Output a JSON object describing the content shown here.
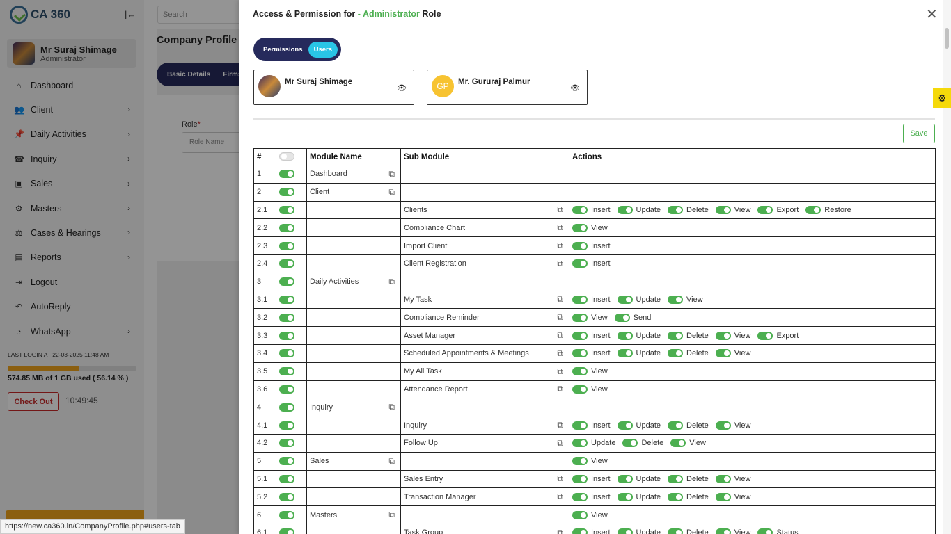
{
  "app": {
    "logo_text": "CA 360"
  },
  "sidebar": {
    "user": {
      "name": "Mr Suraj Shimage",
      "role": "Administrator"
    },
    "items": [
      {
        "label": "Dashboard",
        "icon": "⌂",
        "chev": false
      },
      {
        "label": "Client",
        "icon": "👥",
        "chev": true
      },
      {
        "label": "Daily Activities",
        "icon": "📌",
        "chev": true
      },
      {
        "label": "Inquiry",
        "icon": "☎",
        "chev": true
      },
      {
        "label": "Sales",
        "icon": "▣",
        "chev": true
      },
      {
        "label": "Masters",
        "icon": "⚙",
        "chev": true
      },
      {
        "label": "Cases & Hearings",
        "icon": "⚖",
        "chev": true
      },
      {
        "label": "Reports",
        "icon": "▤",
        "chev": true
      },
      {
        "label": "Logout",
        "icon": "⇥",
        "chev": false
      },
      {
        "label": "AutoReply",
        "icon": "↶",
        "chev": false
      },
      {
        "label": "WhatsApp",
        "icon": "◔",
        "chev": true
      }
    ],
    "last_login": "LAST LOGIN AT 22-03-2025 11:48 AM",
    "storage_text": "574.85 MB of 1 GB used ( 56.14 % )",
    "storage_fraction": 0.5614,
    "checkout_label": "Check Out",
    "clock": "10:49:45"
  },
  "main": {
    "search_placeholder": "Search",
    "page_title": "Company Profile",
    "tabs": [
      "Basic Details",
      "Firms"
    ],
    "role_label": "Role",
    "role_required": "*",
    "role_placeholder": "Role Name"
  },
  "status_url": "https://new.ca360.in/CompanyProfile.php#users-tab",
  "drawer": {
    "title_prefix": "Access & Permission for",
    "title_role": "- Administrator",
    "title_suffix": "Role",
    "toggle": {
      "permissions": "Permissions",
      "users": "Users"
    },
    "users": [
      {
        "name": "Mr Suraj Shimage",
        "initials": ""
      },
      {
        "name": "Mr. Gururaj Palmur",
        "initials": "GP"
      }
    ],
    "save_label": "Save",
    "table": {
      "headers": [
        "#",
        "",
        "Module Name",
        "Sub Module",
        "Actions"
      ],
      "rows": [
        {
          "num": "1",
          "module": "Dashboard",
          "sub": "",
          "actions": []
        },
        {
          "num": "2",
          "module": "Client",
          "sub": "",
          "actions": []
        },
        {
          "num": "2.1",
          "module": "",
          "sub": "Clients",
          "actions": [
            "Insert",
            "Update",
            "Delete",
            "View",
            "Export",
            "Restore"
          ]
        },
        {
          "num": "2.2",
          "module": "",
          "sub": "Compliance Chart",
          "actions": [
            "View"
          ]
        },
        {
          "num": "2.3",
          "module": "",
          "sub": "Import Client",
          "actions": [
            "Insert"
          ]
        },
        {
          "num": "2.4",
          "module": "",
          "sub": "Client Registration",
          "actions": [
            "Insert"
          ]
        },
        {
          "num": "3",
          "module": "Daily Activities",
          "sub": "",
          "actions": []
        },
        {
          "num": "3.1",
          "module": "",
          "sub": "My Task",
          "actions": [
            "Insert",
            "Update",
            "View"
          ]
        },
        {
          "num": "3.2",
          "module": "",
          "sub": "Compliance Reminder",
          "actions": [
            "View",
            "Send"
          ]
        },
        {
          "num": "3.3",
          "module": "",
          "sub": "Asset Manager",
          "actions": [
            "Insert",
            "Update",
            "Delete",
            "View",
            "Export"
          ]
        },
        {
          "num": "3.4",
          "module": "",
          "sub": "Scheduled Appointments & Meetings",
          "actions": [
            "Insert",
            "Update",
            "Delete",
            "View"
          ]
        },
        {
          "num": "3.5",
          "module": "",
          "sub": "My All Task",
          "actions": [
            "View"
          ]
        },
        {
          "num": "3.6",
          "module": "",
          "sub": "Attendance Report",
          "actions": [
            "View"
          ]
        },
        {
          "num": "4",
          "module": "Inquiry",
          "sub": "",
          "actions": []
        },
        {
          "num": "4.1",
          "module": "",
          "sub": "Inquiry",
          "actions": [
            "Insert",
            "Update",
            "Delete",
            "View"
          ]
        },
        {
          "num": "4.2",
          "module": "",
          "sub": "Follow Up",
          "actions": [
            "Update",
            "Delete",
            "View"
          ]
        },
        {
          "num": "5",
          "module": "Sales",
          "sub": "",
          "actions": [
            "View"
          ]
        },
        {
          "num": "5.1",
          "module": "",
          "sub": "Sales Entry",
          "actions": [
            "Insert",
            "Update",
            "Delete",
            "View"
          ]
        },
        {
          "num": "5.2",
          "module": "",
          "sub": "Transaction Manager",
          "actions": [
            "Insert",
            "Update",
            "Delete",
            "View"
          ]
        },
        {
          "num": "6",
          "module": "Masters",
          "sub": "",
          "actions": [
            "View"
          ]
        },
        {
          "num": "6.1",
          "module": "",
          "sub": "Task Group",
          "actions": [
            "Insert",
            "Update",
            "Delete",
            "View",
            "Status"
          ]
        }
      ]
    }
  }
}
